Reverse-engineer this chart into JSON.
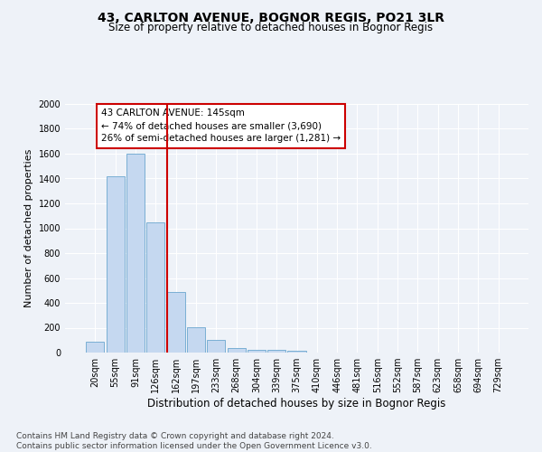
{
  "title": "43, CARLTON AVENUE, BOGNOR REGIS, PO21 3LR",
  "subtitle": "Size of property relative to detached houses in Bognor Regis",
  "xlabel": "Distribution of detached houses by size in Bognor Regis",
  "ylabel": "Number of detached properties",
  "bar_labels": [
    "20sqm",
    "55sqm",
    "91sqm",
    "126sqm",
    "162sqm",
    "197sqm",
    "233sqm",
    "268sqm",
    "304sqm",
    "339sqm",
    "375sqm",
    "410sqm",
    "446sqm",
    "481sqm",
    "516sqm",
    "552sqm",
    "587sqm",
    "623sqm",
    "658sqm",
    "694sqm",
    "729sqm"
  ],
  "bar_values": [
    90,
    1420,
    1600,
    1045,
    490,
    205,
    105,
    40,
    25,
    20,
    15,
    0,
    0,
    0,
    0,
    0,
    0,
    0,
    0,
    0,
    0
  ],
  "bar_color": "#c5d8f0",
  "bar_edgecolor": "#7aafd4",
  "property_line_x": 3.57,
  "annotation_text": "43 CARLTON AVENUE: 145sqm\n← 74% of detached houses are smaller (3,690)\n26% of semi-detached houses are larger (1,281) →",
  "annotation_box_color": "#cc0000",
  "ylim": [
    0,
    2000
  ],
  "yticks": [
    0,
    200,
    400,
    600,
    800,
    1000,
    1200,
    1400,
    1600,
    1800,
    2000
  ],
  "background_color": "#eef2f8",
  "grid_color": "#ffffff",
  "footnote": "Contains HM Land Registry data © Crown copyright and database right 2024.\nContains public sector information licensed under the Open Government Licence v3.0.",
  "title_fontsize": 10,
  "subtitle_fontsize": 8.5,
  "xlabel_fontsize": 8.5,
  "ylabel_fontsize": 8,
  "tick_fontsize": 7,
  "annot_fontsize": 7.5,
  "footnote_fontsize": 6.5
}
